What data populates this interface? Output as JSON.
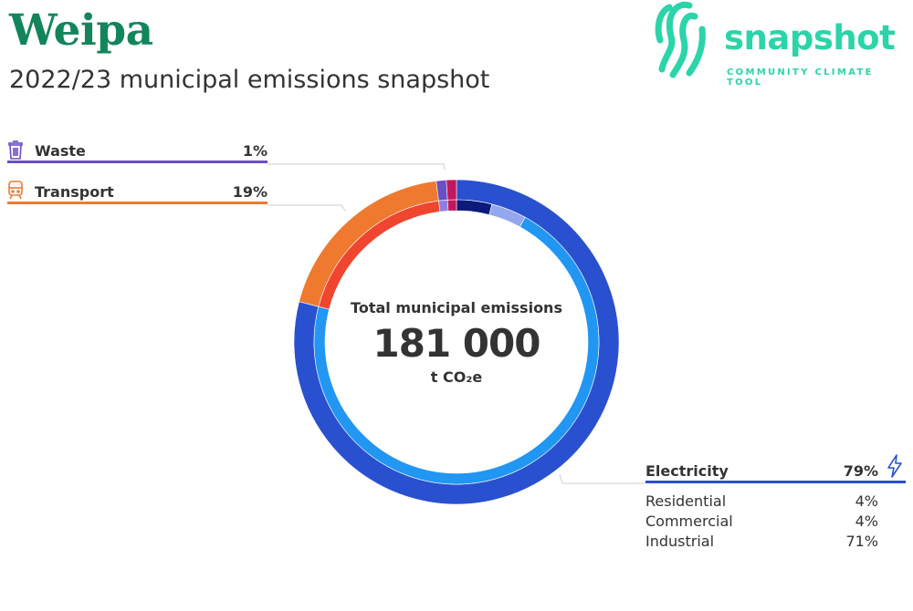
{
  "header": {
    "title": "Weipa",
    "subtitle": "2022/23 municipal emissions snapshot"
  },
  "logo": {
    "word": "snapshot",
    "tagline": "COMMUNITY CLIMATE TOOL",
    "color": "#2bd4a9"
  },
  "center": {
    "label": "Total municipal emissions",
    "value": "181 000",
    "unit": "t CO₂e"
  },
  "legend": {
    "waste": {
      "label": "Waste",
      "pct": "1%",
      "icon": "trash-icon",
      "color": "#6a4fc3"
    },
    "transport": {
      "label": "Transport",
      "pct": "19%",
      "icon": "train-icon",
      "color": "#ef7a2f"
    },
    "electricity": {
      "label": "Electricity",
      "pct": "79%",
      "icon": "lightning-icon",
      "color": "#2951cf",
      "sub": [
        {
          "label": "Residential",
          "pct": "4%"
        },
        {
          "label": "Commercial",
          "pct": "4%"
        },
        {
          "label": "Industrial",
          "pct": "71%"
        }
      ]
    }
  },
  "chart_data": {
    "type": "pie",
    "total": 181000,
    "unit": "t CO₂e",
    "series": [
      {
        "values": [
          {
            "label": "Electricity",
            "value": 79,
            "color": "#2951cf"
          },
          {
            "label": "Transport",
            "value": 19,
            "color": "#ef7a2f"
          },
          {
            "label": "Waste",
            "value": 1,
            "color": "#6a4fc3"
          },
          {
            "label": "",
            "value": 1,
            "color": "#c2185b"
          }
        ]
      },
      {
        "values": [
          {
            "label": "Residential",
            "value": 4,
            "color": "#0c1a7a"
          },
          {
            "label": "Commercial",
            "value": 4,
            "color": "#93a7ee"
          },
          {
            "label": "Industrial",
            "value": 71,
            "color": "#2196f3"
          },
          {
            "label": "",
            "value": 19,
            "color": "#f0452f"
          },
          {
            "label": "",
            "value": 1,
            "color": "#8e7fe0"
          },
          {
            "label": "",
            "value": 1,
            "color": "#c2185b"
          }
        ]
      }
    ]
  }
}
